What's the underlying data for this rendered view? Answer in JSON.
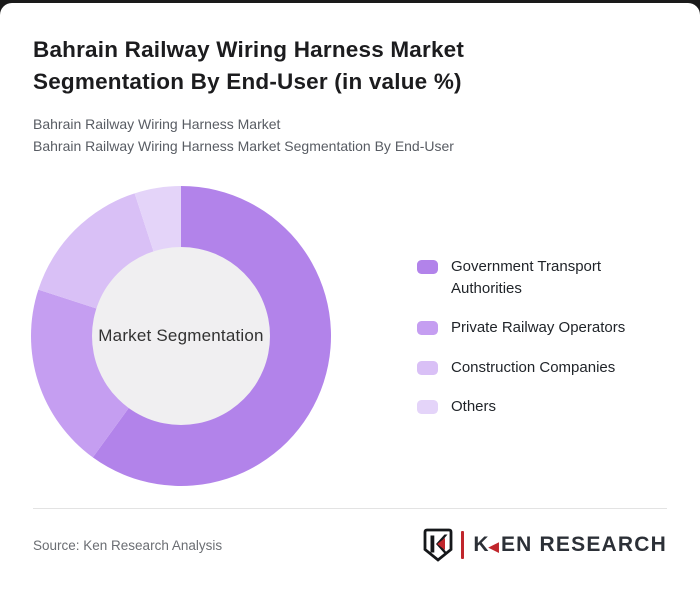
{
  "page": {
    "title": "Bahrain Railway Wiring Harness Market Segmentation By End-User (in value %)",
    "subtitle_lines": [
      "Bahrain Railway Wiring Harness Market",
      "Bahrain Railway Wiring Harness Market Segmentation By End-User"
    ],
    "source": "Source: Ken Research Analysis",
    "brand": {
      "k": "K",
      "rest": "EN RESEARCH",
      "arrow_glyph": "◀",
      "badge_icon": "ken-research-shield-k",
      "accent_color": "#c0262c"
    }
  },
  "chart_data": {
    "type": "pie",
    "donut": true,
    "title": "Bahrain Railway Wiring Harness Market Segmentation By End-User (in value %)",
    "center_label": "Market Segmentation",
    "categories": [
      "Government Transport Authorities",
      "Private Railway Operators",
      "Construction Companies",
      "Others"
    ],
    "values": [
      60,
      20,
      15,
      5
    ],
    "unit": "value %",
    "colors": [
      "#b283ea",
      "#c59ef1",
      "#d9c0f6",
      "#e4d4f9"
    ],
    "hole_color": "#f0eff1",
    "inner_radius_ratio": 0.59,
    "start_angle_deg": 0,
    "direction": "clockwise",
    "legend_position": "right",
    "data_labels_shown": false
  }
}
